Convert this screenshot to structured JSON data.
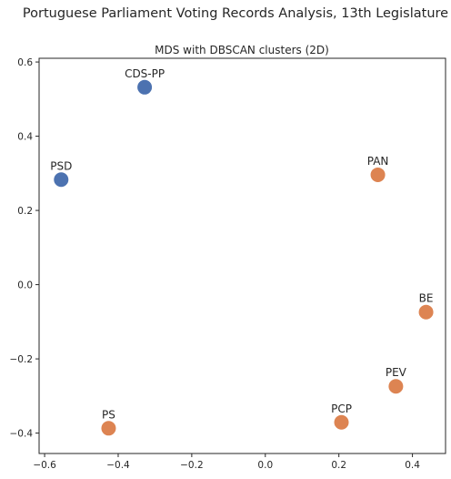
{
  "chart_data": {
    "type": "scatter",
    "suptitle": "Portuguese Parliament Voting Records Analysis, 13th Legislature",
    "title": "MDS with DBSCAN clusters (2D)",
    "xlabel": "",
    "ylabel": "",
    "xlim": [
      -0.615,
      0.49
    ],
    "ylim": [
      -0.455,
      0.61
    ],
    "x_ticks": [
      -0.6,
      -0.4,
      -0.2,
      0.0,
      0.2,
      0.4
    ],
    "x_tick_labels": [
      "−0.6",
      "−0.4",
      "−0.2",
      "0.0",
      "0.2",
      "0.4"
    ],
    "y_ticks": [
      0.6,
      0.4,
      0.2,
      0.0,
      -0.2,
      -0.4
    ],
    "y_tick_labels": [
      "0.6",
      "0.4",
      "0.2",
      "0.0",
      "−0.2",
      "−0.4"
    ],
    "grid": false,
    "colors": {
      "cluster_0": "#4c72b0",
      "cluster_1": "#dd8452"
    },
    "points": [
      {
        "label": "CDS-PP",
        "x": -0.328,
        "y": 0.532,
        "cluster": 0
      },
      {
        "label": "PSD",
        "x": -0.555,
        "y": 0.283,
        "cluster": 0
      },
      {
        "label": "PAN",
        "x": 0.306,
        "y": 0.296,
        "cluster": 1
      },
      {
        "label": "BE",
        "x": 0.437,
        "y": -0.074,
        "cluster": 1
      },
      {
        "label": "PEV",
        "x": 0.355,
        "y": -0.274,
        "cluster": 1
      },
      {
        "label": "PCP",
        "x": 0.207,
        "y": -0.371,
        "cluster": 1
      },
      {
        "label": "PS",
        "x": -0.426,
        "y": -0.387,
        "cluster": 1
      }
    ]
  }
}
